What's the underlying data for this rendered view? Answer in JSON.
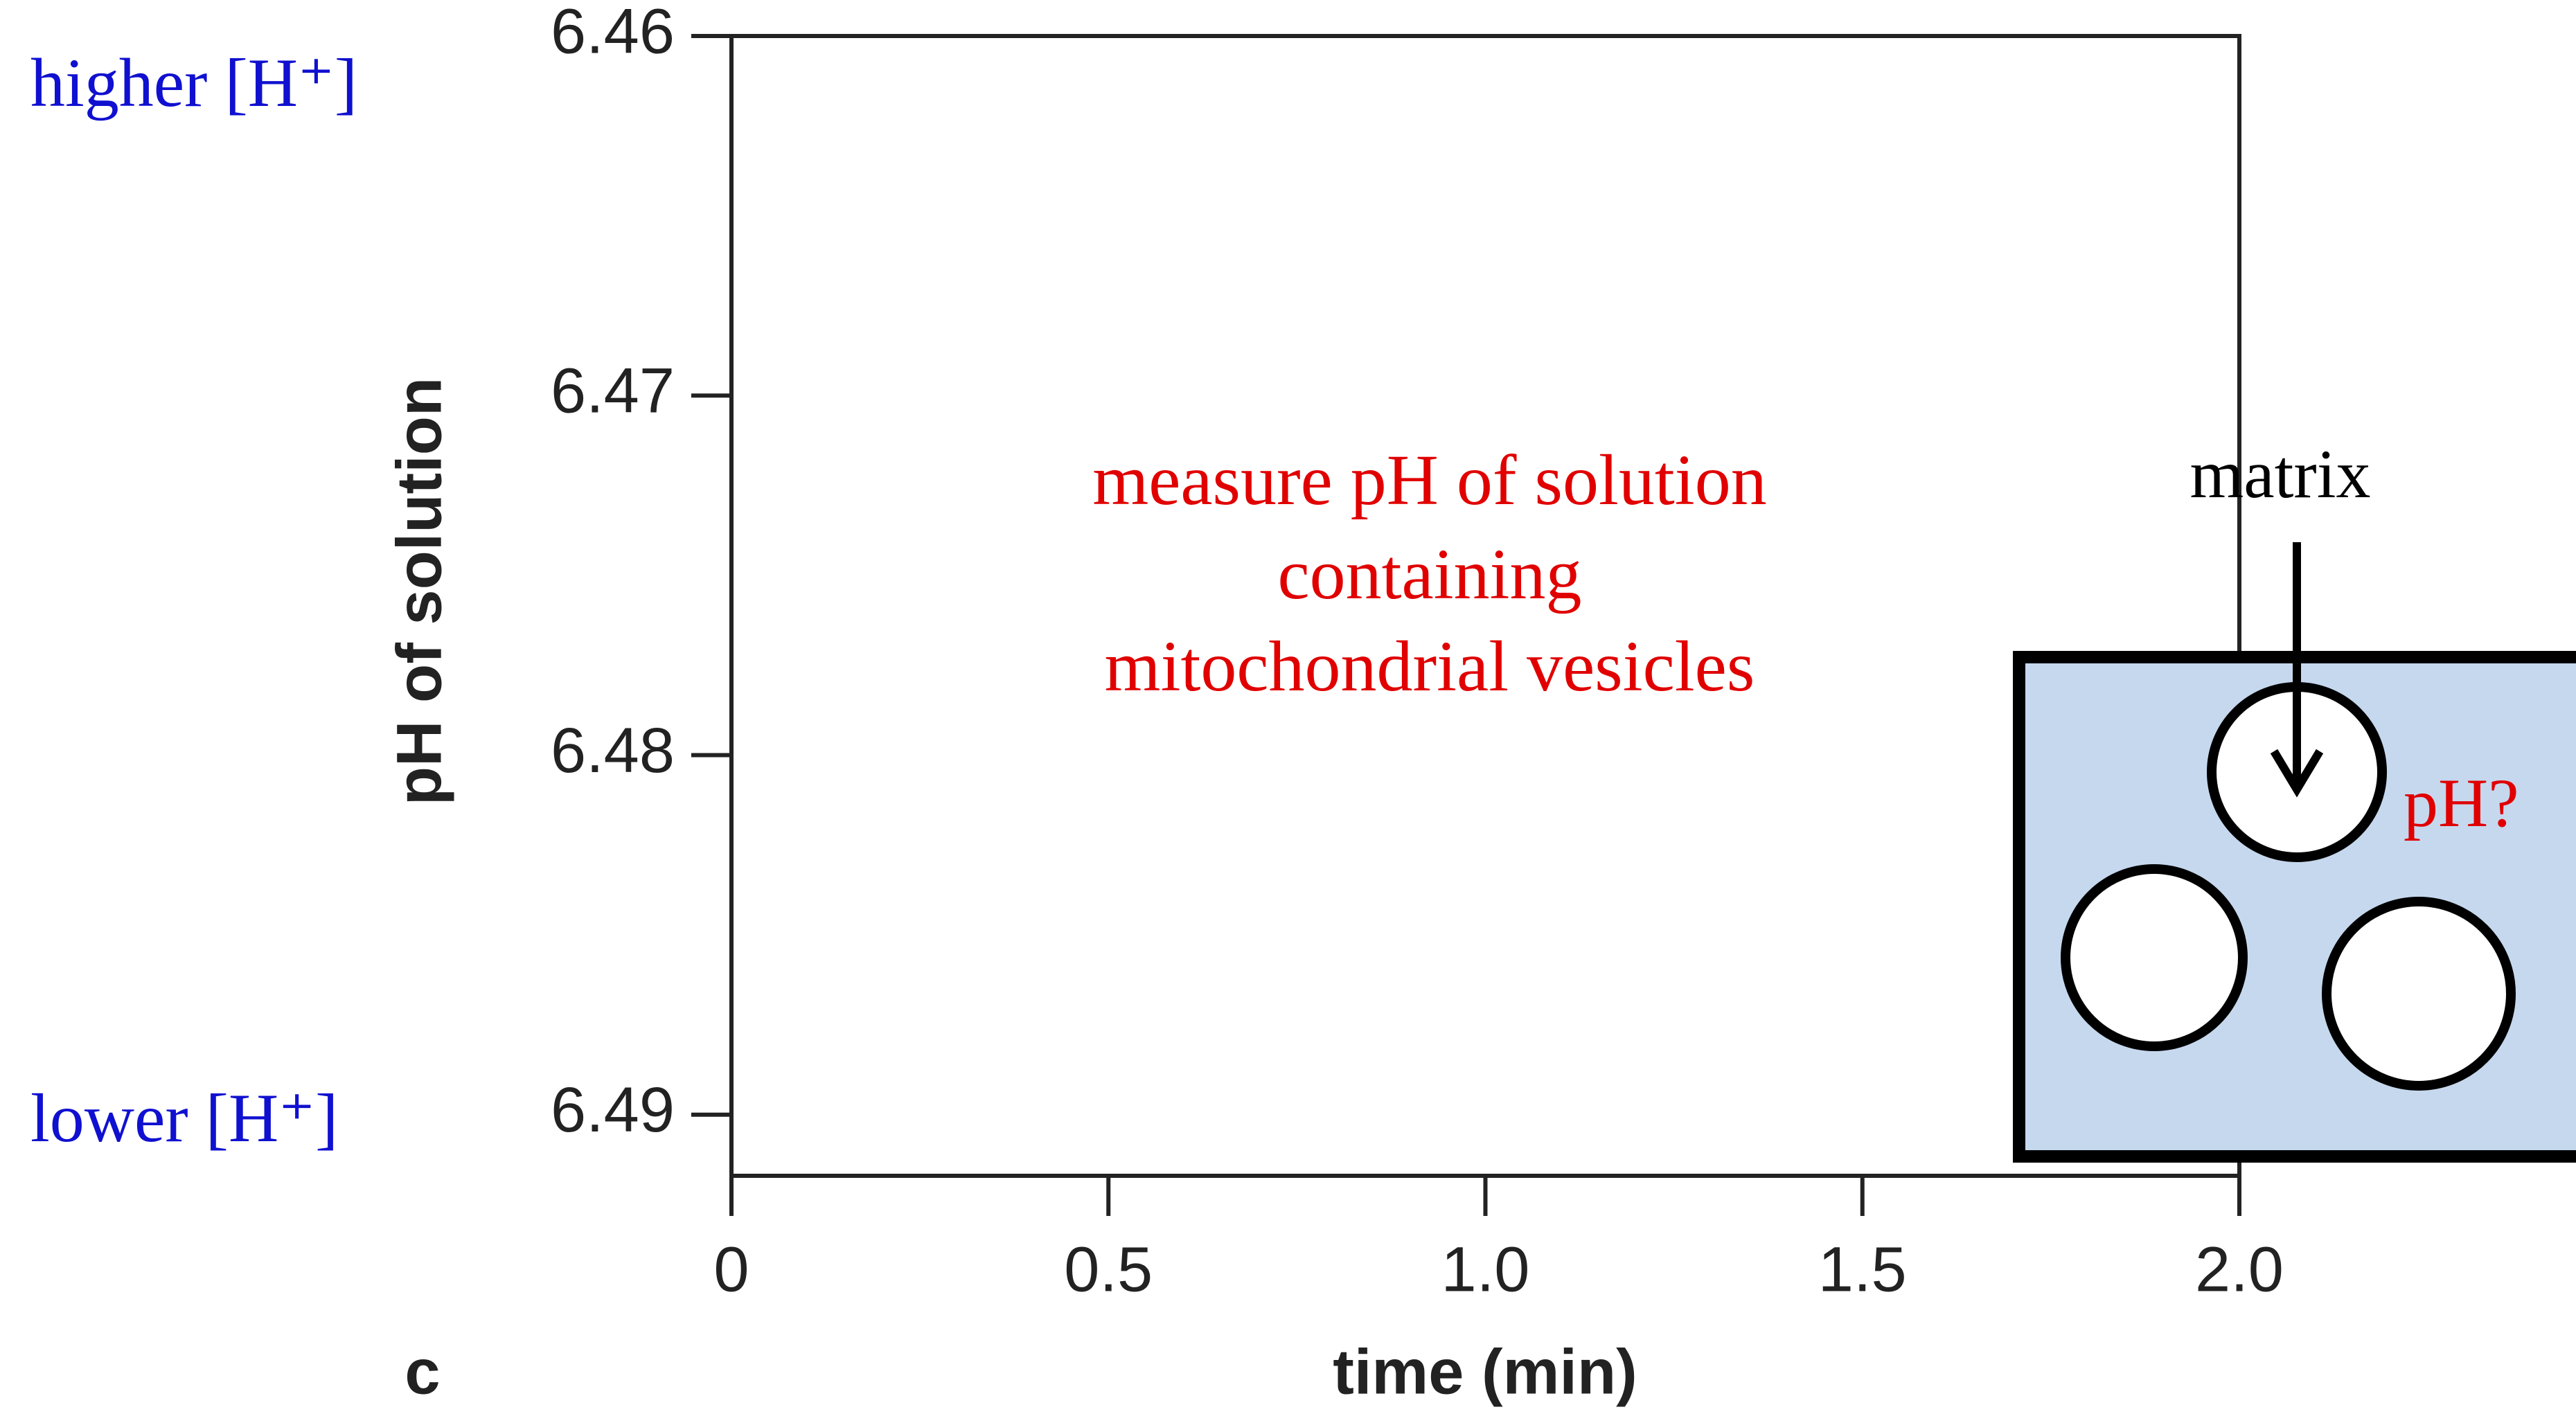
{
  "chart_data": {
    "type": "line",
    "y_label": "pH of solution",
    "x_label": "time (min)",
    "panel_label": "c",
    "xlim": [
      0,
      2
    ],
    "xticks": [
      0,
      0.5,
      {
        "value": 1,
        "label": "1.0"
      },
      1.5,
      {
        "value": 2,
        "label": "2.0"
      }
    ],
    "ylim": [
      6.4917,
      6.46
    ],
    "yticks": [
      6.46,
      6.47,
      6.48,
      6.49
    ],
    "annotations": {
      "higher": "higher  [H⁺]",
      "lower": "lower [H⁺]",
      "measure": [
        "measure pH of solution",
        "containing",
        "mitochondrial vesicles"
      ],
      "matrix": "matrix",
      "ph": "pH?"
    }
  }
}
